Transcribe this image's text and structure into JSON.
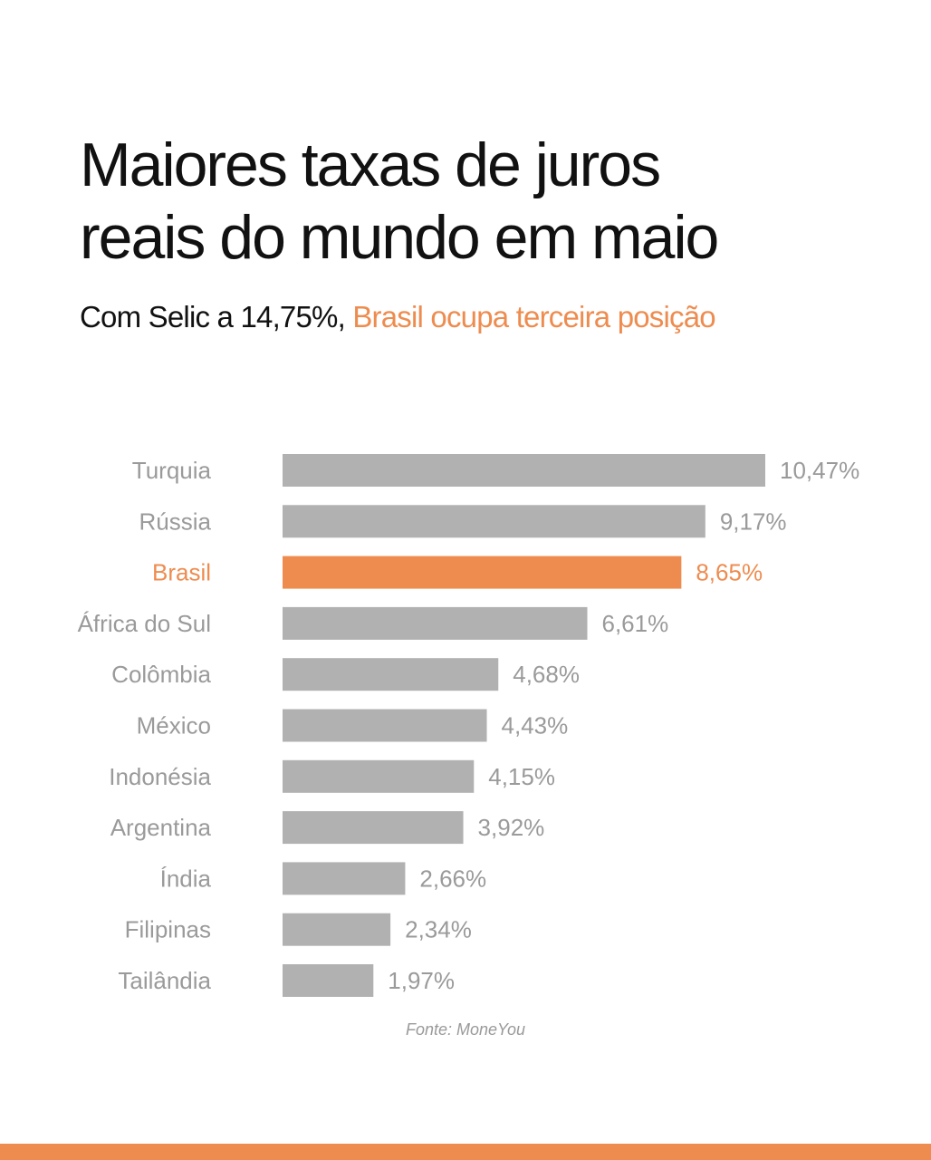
{
  "header": {
    "title_line1": "Maiores taxas de juros",
    "title_line2": "reais do mundo em maio",
    "subtitle_plain": "Com Selic a 14,75%, ",
    "subtitle_accent": "Brasil ocupa terceira posição"
  },
  "source": "Fonte: MoneYou",
  "colors": {
    "bar": "#b1b1b1",
    "highlight": "#ee8c4f",
    "label": "#9a9a9a"
  },
  "chart_data": {
    "type": "bar",
    "orientation": "horizontal",
    "categories": [
      "Turquia",
      "Rússia",
      "Brasil",
      "África do Sul",
      "Colômbia",
      "México",
      "Indonésia",
      "Argentina",
      "Índia",
      "Filipinas",
      "Tailândia"
    ],
    "values": [
      10.47,
      9.17,
      8.65,
      6.61,
      4.68,
      4.43,
      4.15,
      3.92,
      2.66,
      2.34,
      1.97
    ],
    "value_labels": [
      "10,47%",
      "9,17%",
      "8,65%",
      "6,61%",
      "4,68%",
      "4,43%",
      "4,15%",
      "3,92%",
      "2,66%",
      "2,34%",
      "1,97%"
    ],
    "highlight": "Brasil",
    "title": "Maiores taxas de juros reais do mundo em maio",
    "xlabel": "",
    "ylabel": "",
    "xlim": [
      0,
      10.47
    ],
    "grid": false,
    "legend": "none"
  }
}
